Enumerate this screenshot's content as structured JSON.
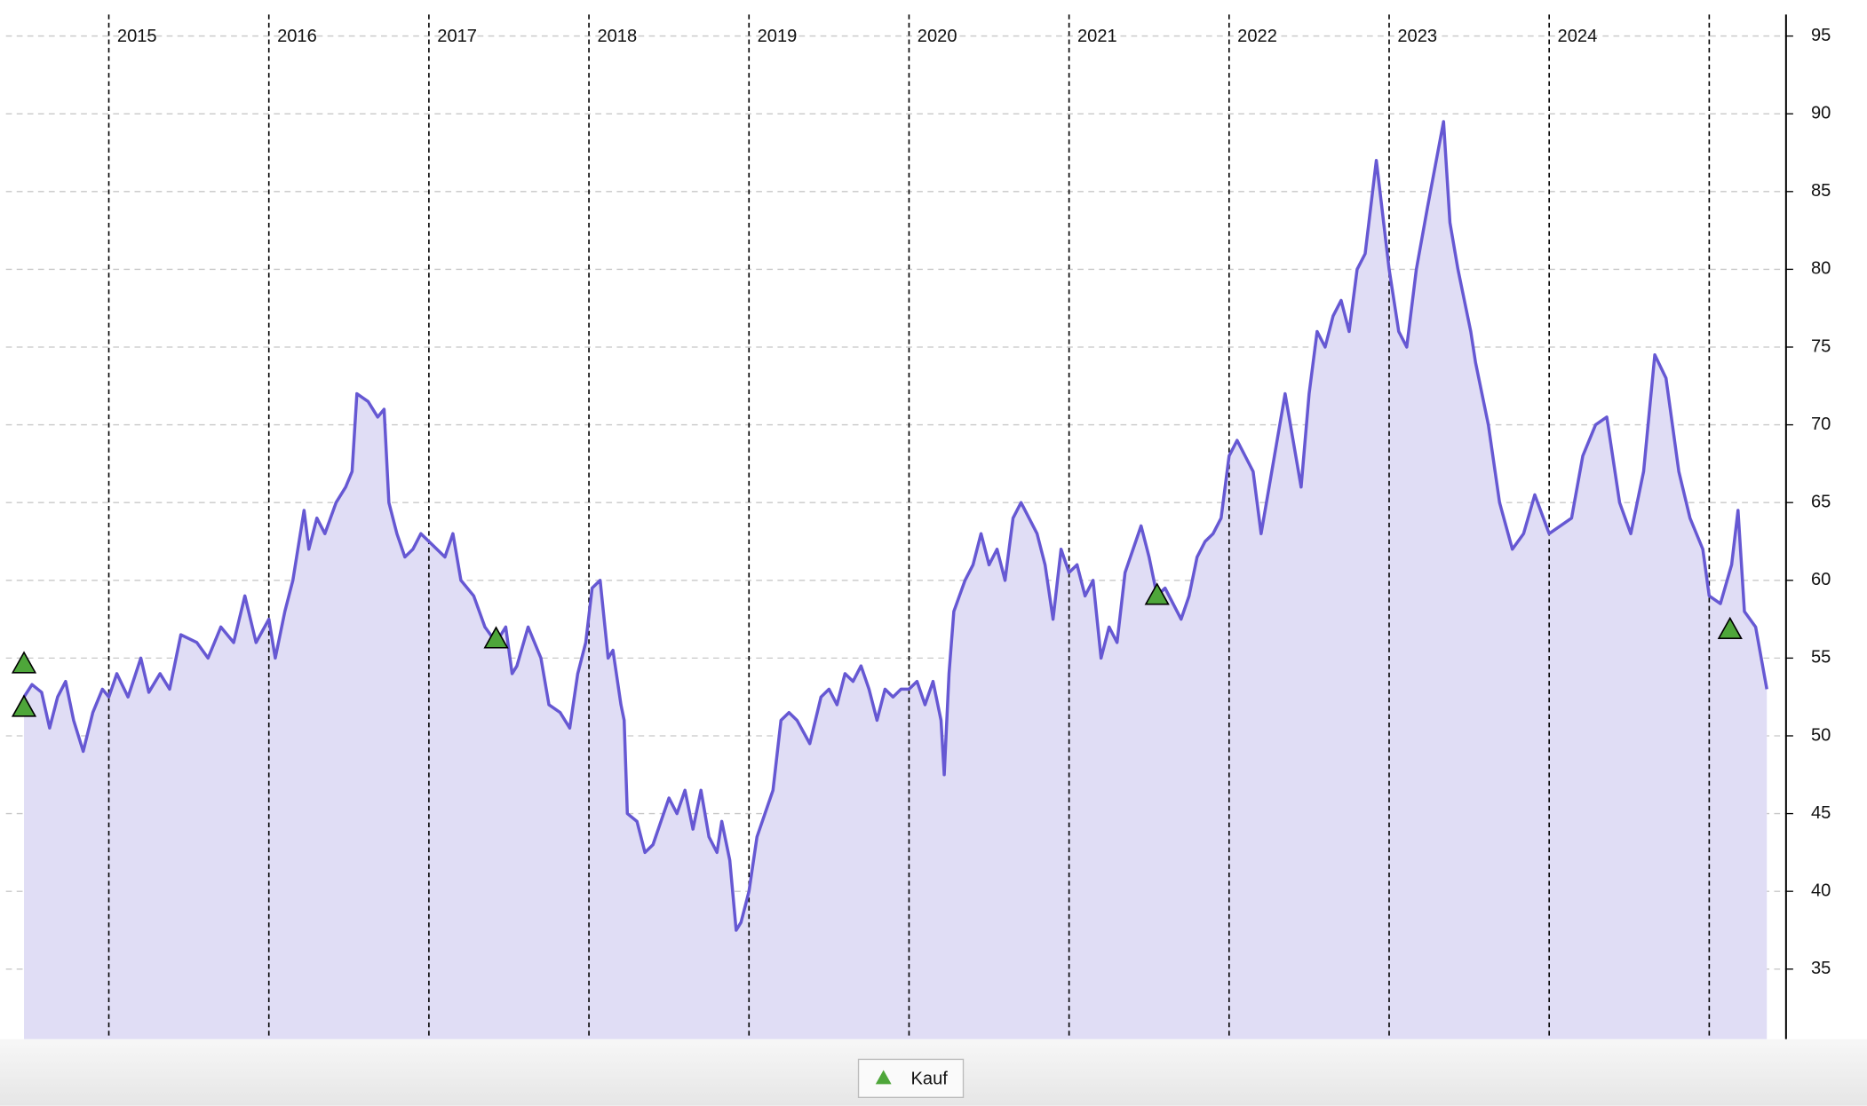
{
  "chart_data": {
    "type": "line",
    "xlim": [
      2014.32,
      2025.48
    ],
    "xticks": [
      2015,
      2016,
      2017,
      2018,
      2019,
      2020,
      2021,
      2022,
      2023,
      2024,
      {
        "value": 2025,
        "label": null
      }
    ],
    "ylim": [
      30.5,
      97.3
    ],
    "yticks": [
      35,
      40,
      45,
      50,
      55,
      60,
      65,
      70,
      75,
      80,
      85,
      90,
      95
    ],
    "grid": true,
    "legend": "bottom",
    "series": [
      {
        "color": "#6658d3",
        "fill": "#e0ddf5",
        "x": [
          2014.47,
          2014.52,
          2014.58,
          2014.63,
          2014.68,
          2014.73,
          2014.78,
          2014.84,
          2014.9,
          2014.96,
          2015.0,
          2015.05,
          2015.12,
          2015.2,
          2015.25,
          2015.32,
          2015.38,
          2015.45,
          2015.55,
          2015.62,
          2015.7,
          2015.78,
          2015.85,
          2015.92,
          2016.0,
          2016.04,
          2016.1,
          2016.15,
          2016.22,
          2016.25,
          2016.3,
          2016.35,
          2016.42,
          2016.48,
          2016.52,
          2016.55,
          2016.62,
          2016.68,
          2016.72,
          2016.75,
          2016.8,
          2016.85,
          2016.9,
          2016.95,
          2017.0,
          2017.05,
          2017.1,
          2017.15,
          2017.2,
          2017.28,
          2017.35,
          2017.42,
          2017.48,
          2017.52,
          2017.55,
          2017.62,
          2017.7,
          2017.75,
          2017.82,
          2017.88,
          2017.93,
          2017.98,
          2018.02,
          2018.07,
          2018.1,
          2018.12,
          2018.15,
          2018.2,
          2018.22,
          2018.24,
          2018.3,
          2018.35,
          2018.4,
          2018.45,
          2018.5,
          2018.55,
          2018.6,
          2018.65,
          2018.7,
          2018.75,
          2018.8,
          2018.83,
          2018.88,
          2018.92,
          2018.95,
          2019.0,
          2019.05,
          2019.1,
          2019.15,
          2019.2,
          2019.25,
          2019.3,
          2019.38,
          2019.45,
          2019.5,
          2019.55,
          2019.6,
          2019.65,
          2019.7,
          2019.75,
          2019.8,
          2019.85,
          2019.9,
          2019.95,
          2020.0,
          2020.05,
          2020.1,
          2020.15,
          2020.2,
          2020.22,
          2020.25,
          2020.28,
          2020.35,
          2020.4,
          2020.45,
          2020.5,
          2020.55,
          2020.6,
          2020.65,
          2020.7,
          2020.75,
          2020.8,
          2020.85,
          2020.9,
          2020.95,
          2021.0,
          2021.05,
          2021.1,
          2021.15,
          2021.2,
          2021.25,
          2021.3,
          2021.35,
          2021.4,
          2021.45,
          2021.5,
          2021.55,
          2021.6,
          2021.65,
          2021.7,
          2021.75,
          2021.8,
          2021.85,
          2021.9,
          2021.95,
          2022.0,
          2022.05,
          2022.1,
          2022.15,
          2022.2,
          2022.25,
          2022.3,
          2022.35,
          2022.4,
          2022.45,
          2022.5,
          2022.55,
          2022.6,
          2022.65,
          2022.7,
          2022.75,
          2022.8,
          2022.85,
          2022.92,
          2023.0,
          2023.06,
          2023.11,
          2023.17,
          2023.24,
          2023.34,
          2023.38,
          2023.43,
          2023.51,
          2023.54,
          2023.62,
          2023.69,
          2023.77,
          2023.84,
          2023.91,
          2024.0,
          2024.14,
          2024.21,
          2024.29,
          2024.36,
          2024.44,
          2024.51,
          2024.59,
          2024.66,
          2024.73,
          2024.81,
          2024.88,
          2024.96,
          2025.0,
          2025.07,
          2025.14,
          2025.18,
          2025.22,
          2025.29,
          2025.36
        ],
        "values": [
          52.5,
          53.3,
          52.8,
          50.5,
          52.5,
          53.5,
          51,
          49,
          51.5,
          53,
          52.5,
          54,
          52.5,
          55,
          52.8,
          54,
          53,
          56.5,
          56,
          55,
          57,
          56,
          59,
          56,
          57.5,
          55,
          58,
          60,
          64.5,
          62,
          64,
          63,
          65,
          66,
          67,
          72,
          71.5,
          70.5,
          71,
          65,
          63,
          61.5,
          62,
          63,
          62.5,
          62,
          61.5,
          63,
          60,
          59,
          57,
          56,
          57,
          54,
          54.5,
          57,
          55,
          52,
          51.5,
          50.5,
          54,
          56,
          59.5,
          60,
          57,
          55,
          55.5,
          52,
          51,
          45,
          44.5,
          42.5,
          43,
          44.5,
          46,
          45,
          46.5,
          44,
          46.5,
          43.5,
          42.5,
          44.5,
          42,
          37.5,
          38,
          40,
          43.5,
          45,
          46.5,
          51,
          51.5,
          51,
          49.5,
          52.5,
          53,
          52,
          54,
          53.5,
          54.5,
          53,
          51,
          53,
          52.5,
          53,
          53,
          53.5,
          52,
          53.5,
          51,
          47.5,
          54,
          58,
          60,
          61,
          63,
          61,
          62,
          60,
          64,
          65,
          64,
          63,
          61,
          57.5,
          62,
          60.5,
          61,
          59,
          60,
          55,
          57,
          56,
          60.5,
          62,
          63.5,
          61.5,
          59,
          59.5,
          58.5,
          57.5,
          59,
          61.5,
          62.5,
          63,
          64,
          68,
          69,
          68,
          67,
          63,
          66,
          69,
          72,
          69,
          66,
          72,
          76,
          75,
          77,
          78,
          76,
          80,
          81,
          87,
          80,
          76,
          75,
          80,
          84,
          89.5,
          83,
          80,
          76,
          74,
          70,
          65,
          62,
          63,
          65.5,
          63,
          64,
          68,
          70,
          70.5,
          65,
          63,
          67,
          74.5,
          73,
          67,
          64,
          62,
          59,
          58.5,
          61,
          64.5,
          58,
          57,
          53
        ]
      },
      {
        "name": "Kauf",
        "type": "scatter",
        "marker": "triangle",
        "color": "#4ea63a",
        "x": [
          2014.47,
          2014.47,
          2017.42,
          2021.55,
          2025.13
        ],
        "values": [
          54.6,
          51.8,
          56.2,
          59,
          56.8
        ]
      }
    ]
  }
}
